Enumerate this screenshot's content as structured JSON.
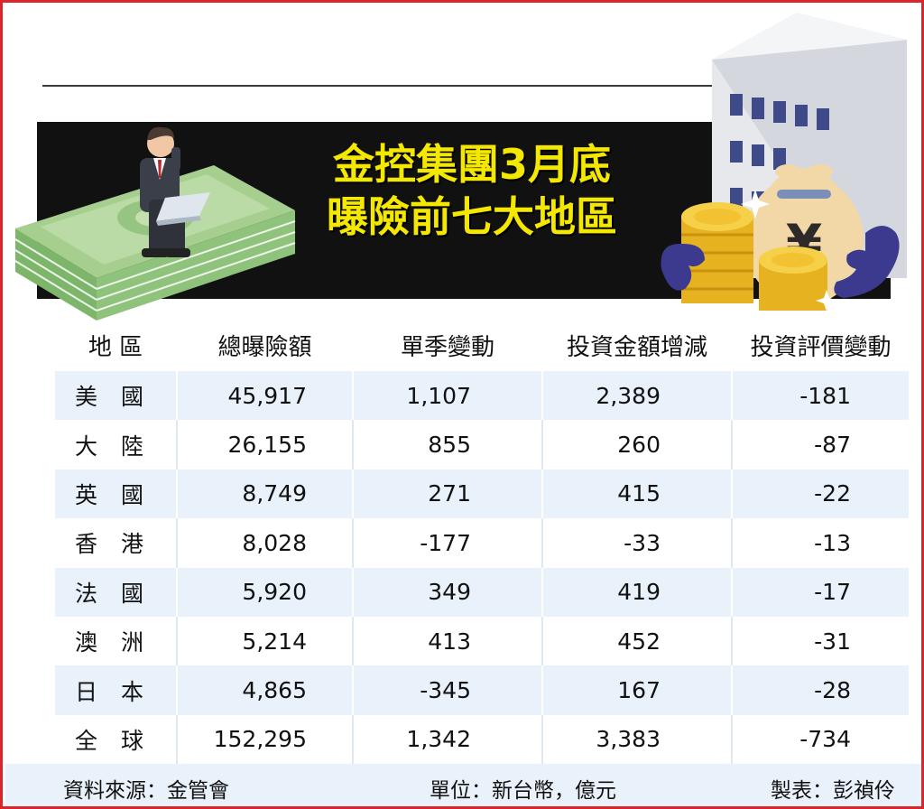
{
  "title": {
    "line1": "金控集團3月底",
    "line2": "曝險前七大地區"
  },
  "table": {
    "headers": [
      "地 區",
      "總曝險額",
      "單季變動",
      "投資金額增減",
      "投資評價變動"
    ],
    "rows": [
      {
        "region": "美國",
        "total": "45,917",
        "quarter_change": "1,107",
        "investment_change": "2,389",
        "valuation_change": "-181"
      },
      {
        "region": "大陸",
        "total": "26,155",
        "quarter_change": "855",
        "investment_change": "260",
        "valuation_change": "-87"
      },
      {
        "region": "英國",
        "total": "8,749",
        "quarter_change": "271",
        "investment_change": "415",
        "valuation_change": "-22"
      },
      {
        "region": "香港",
        "total": "8,028",
        "quarter_change": "-177",
        "investment_change": "-33",
        "valuation_change": "-13"
      },
      {
        "region": "法國",
        "total": "5,920",
        "quarter_change": "349",
        "investment_change": "419",
        "valuation_change": "-17"
      },
      {
        "region": "澳洲",
        "total": "5,214",
        "quarter_change": "413",
        "investment_change": "452",
        "valuation_change": "-31"
      },
      {
        "region": "日本",
        "total": "4,865",
        "quarter_change": "-345",
        "investment_change": "167",
        "valuation_change": "-28"
      },
      {
        "region": "全球",
        "total": "152,295",
        "quarter_change": "1,342",
        "investment_change": "3,383",
        "valuation_change": "-734"
      }
    ]
  },
  "footer": {
    "source": "資料來源：金管會",
    "unit": "單位：新台幣，億元",
    "maker": "製表：彭禎伶"
  },
  "art": {
    "money_bag_symbol": "¥"
  },
  "colors": {
    "frame": "#d9262a",
    "banner": "#111111",
    "title": "#f5e800",
    "row_stripe": "#e9f1fa"
  }
}
